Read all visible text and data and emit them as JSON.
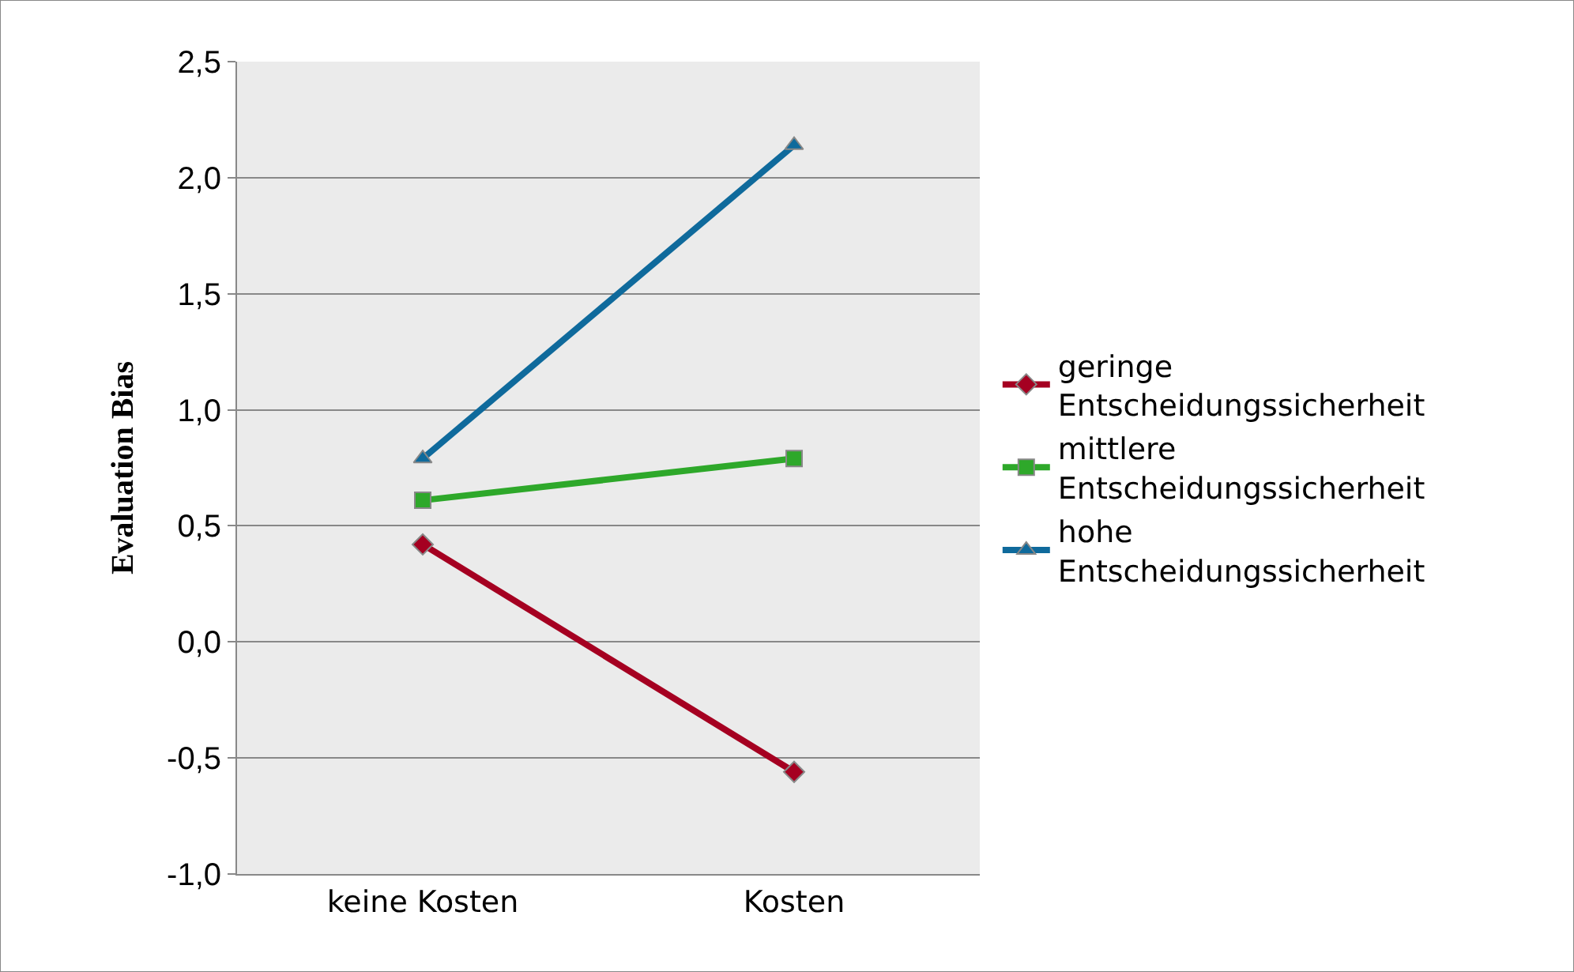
{
  "chart_data": {
    "type": "line",
    "ylabel": "Evaluation Bias",
    "categories": [
      "keine Kosten",
      "Kosten"
    ],
    "series": [
      {
        "name": "geringe Entscheidungssicherheit",
        "color": "#a50021",
        "marker": "diamond",
        "values": [
          0.42,
          -0.56
        ]
      },
      {
        "name": "mittlere Entscheidungssicherheit",
        "color": "#2ea82a",
        "marker": "square",
        "values": [
          0.61,
          0.79
        ]
      },
      {
        "name": "hohe Entscheidungssicherheit",
        "color": "#0f6a9c",
        "marker": "triangle",
        "values": [
          0.79,
          2.14
        ]
      }
    ],
    "ylim": [
      -1.0,
      2.5
    ],
    "yticks": [
      {
        "value": -1.0,
        "label": "-1,0"
      },
      {
        "value": -0.5,
        "label": "-0,5"
      },
      {
        "value": 0.0,
        "label": "0,0"
      },
      {
        "value": 0.5,
        "label": "0,5"
      },
      {
        "value": 1.0,
        "label": "1,0"
      },
      {
        "value": 1.5,
        "label": "1,5"
      },
      {
        "value": 2.0,
        "label": "2,0"
      },
      {
        "value": 2.5,
        "label": "2,5"
      }
    ],
    "grid": "y",
    "legend": "right",
    "line_style": "solid"
  }
}
